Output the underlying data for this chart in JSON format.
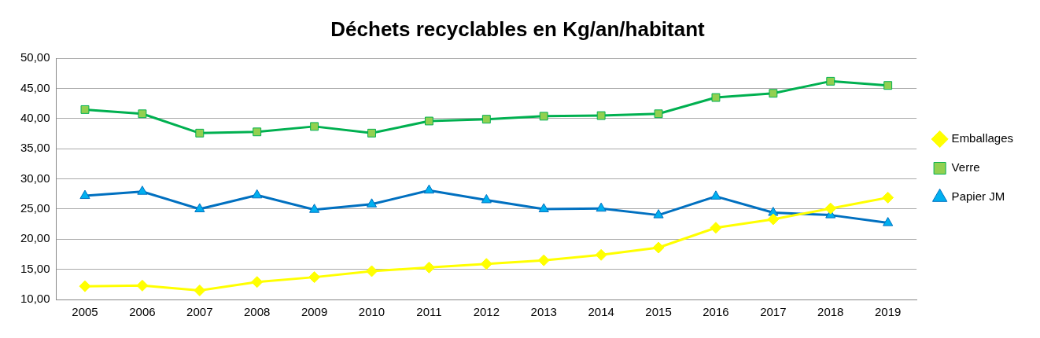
{
  "chart_data": {
    "type": "line",
    "title": "Déchets recyclables en Kg/an/habitant",
    "categories": [
      "2005",
      "2006",
      "2007",
      "2008",
      "2009",
      "2010",
      "2011",
      "2012",
      "2013",
      "2014",
      "2015",
      "2016",
      "2017",
      "2018",
      "2019"
    ],
    "series": [
      {
        "name": "Emballages",
        "color": "#ffff00",
        "marker": "diamond",
        "values": [
          12.2,
          12.3,
          11.5,
          12.9,
          13.7,
          14.7,
          15.3,
          15.9,
          16.5,
          17.4,
          18.6,
          21.9,
          23.3,
          25.1,
          26.9
        ]
      },
      {
        "name": "Verre",
        "color": "#00b050",
        "marker": "square",
        "values": [
          41.5,
          40.8,
          37.6,
          37.8,
          38.7,
          37.6,
          39.6,
          39.9,
          40.4,
          40.5,
          40.8,
          43.5,
          44.2,
          46.2,
          45.5
        ]
      },
      {
        "name": "Papier JM",
        "color": "#0070c0",
        "marker": "triangle",
        "values": [
          27.2,
          27.9,
          25.0,
          27.3,
          24.9,
          25.8,
          28.1,
          26.5,
          25.0,
          25.1,
          24.0,
          27.1,
          24.4,
          24.0,
          22.7
        ]
      }
    ],
    "ylim": [
      10,
      50
    ],
    "yticks": [
      {
        "value": 10,
        "label": "10,00"
      },
      {
        "value": 15,
        "label": "15,00"
      },
      {
        "value": 20,
        "label": "20,00"
      },
      {
        "value": 25,
        "label": "25,00"
      },
      {
        "value": 30,
        "label": "30,00"
      },
      {
        "value": 35,
        "label": "35,00"
      },
      {
        "value": 40,
        "label": "40,00"
      },
      {
        "value": 45,
        "label": "45,00"
      },
      {
        "value": 50,
        "label": "50,00"
      }
    ],
    "grid": "y",
    "legend": "right",
    "line_style": "solid"
  }
}
